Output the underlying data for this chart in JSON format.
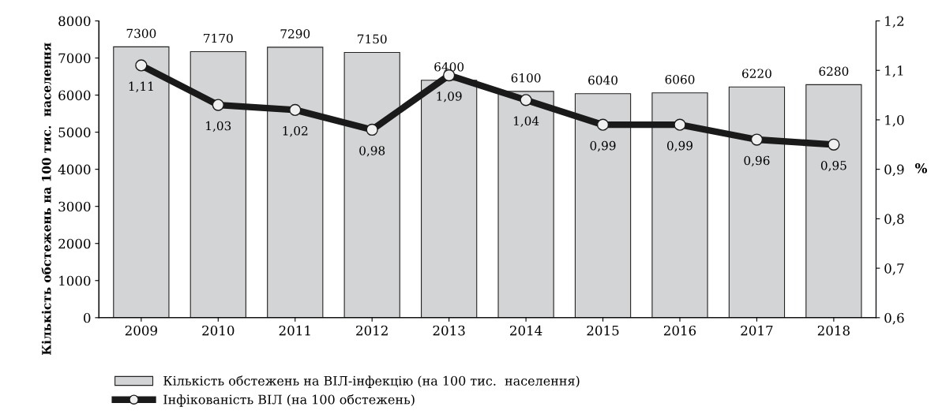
{
  "chart_data": {
    "type": "bar",
    "categories": [
      "2009",
      "2010",
      "2011",
      "2012",
      "2013",
      "2014",
      "2015",
      "2016",
      "2017",
      "2018"
    ],
    "series": [
      {
        "name": "Кількість обстежень на ВІЛ-інфекцію (на 100 тис.  населення)",
        "color": "#d3d4d6",
        "values": [
          7300,
          7170,
          7290,
          7150,
          6400,
          6100,
          6040,
          6060,
          6220,
          6280
        ],
        "value_labels": [
          "7300",
          "7170",
          "7290",
          "7150",
          "6400",
          "6100",
          "6040",
          "6060",
          "6220",
          "6280"
        ]
      },
      {
        "name": "Інфікованість ВІЛ (на 100 обстежень)",
        "type": "line",
        "axis": "y2",
        "color": "#1a1a1a",
        "marker": "circle",
        "values": [
          1.11,
          1.03,
          1.02,
          0.98,
          1.09,
          1.04,
          0.99,
          0.99,
          0.96,
          0.95
        ],
        "value_labels": [
          "1,11",
          "1,03",
          "1,02",
          "0,98",
          "1,09",
          "1,04",
          "0,99",
          "0,99",
          "0,96",
          "0,95"
        ]
      }
    ],
    "ylabel": "Кількість обстежень на 100 тис.  населення",
    "y2label": "%",
    "ylim": [
      0,
      8000
    ],
    "yticks": [
      0,
      1000,
      2000,
      3000,
      4000,
      5000,
      6000,
      7000,
      8000
    ],
    "y2lim": [
      0.6,
      1.2
    ],
    "y2ticks": [
      {
        "value": 0.6,
        "label": "0,6"
      },
      {
        "value": 0.7,
        "label": "0,7"
      },
      {
        "value": 0.8,
        "label": "0,8"
      },
      {
        "value": 0.9,
        "label": "0,9"
      },
      {
        "value": 1.0,
        "label": "1,0"
      },
      {
        "value": 1.1,
        "label": "1,1"
      },
      {
        "value": 1.2,
        "label": "1,2"
      }
    ],
    "legend": "bottom left",
    "grid": false
  }
}
